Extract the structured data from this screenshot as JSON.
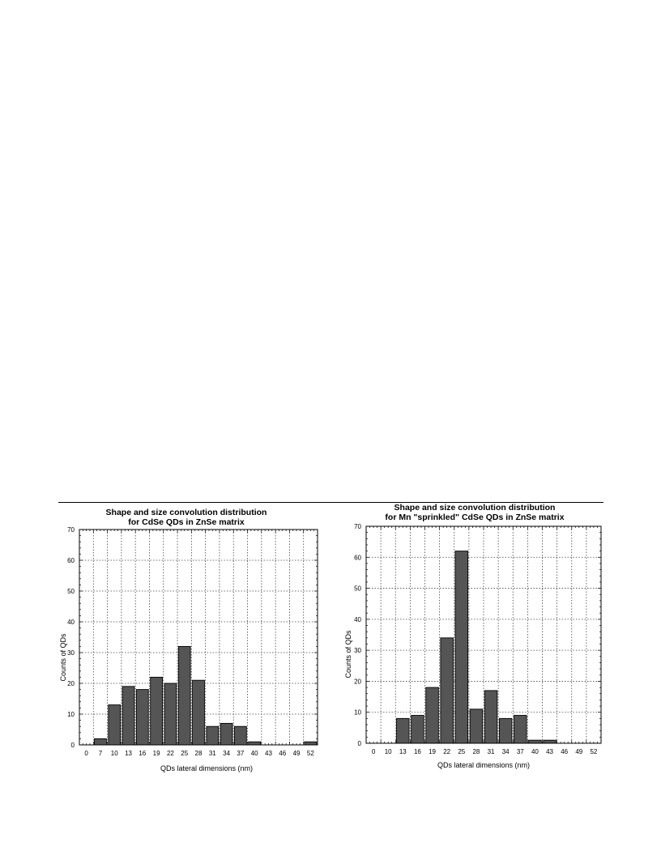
{
  "chart_data": [
    {
      "type": "bar",
      "title_line1": "Shape and size convolution distribution",
      "title_line2": "for CdSe QDs in ZnSe matrix",
      "xlabel": "QDs  lateral dimensions (nm)",
      "ylabel": "Counts of QDs",
      "ylim": [
        0,
        70
      ],
      "yticks": [
        0,
        10,
        20,
        30,
        40,
        50,
        60,
        70
      ],
      "categories": [
        "0",
        "7",
        "10",
        "13",
        "16",
        "19",
        "22",
        "25",
        "28",
        "31",
        "34",
        "37",
        "40",
        "43",
        "46",
        "49",
        "52"
      ],
      "values": [
        0,
        2,
        13,
        19,
        18,
        22,
        20,
        32,
        21,
        6,
        7,
        6,
        1,
        0,
        0,
        0,
        1
      ],
      "grid": true,
      "bar_color": "#555555"
    },
    {
      "type": "bar",
      "title_line1": "Shape and size convolution distribution",
      "title_line2": "for Mn \"sprinkled\" CdSe QDs in ZnSe matrix",
      "xlabel": "QDs lateral dimensions (nm)",
      "ylabel": "Counts of QDs",
      "ylim": [
        0,
        70
      ],
      "yticks": [
        0,
        10,
        20,
        30,
        40,
        50,
        60,
        70
      ],
      "categories": [
        "0",
        "10",
        "13",
        "16",
        "19",
        "22",
        "25",
        "28",
        "31",
        "34",
        "37",
        "40",
        "43",
        "46",
        "49",
        "52"
      ],
      "values": [
        0,
        0,
        8,
        9,
        18,
        34,
        62,
        11,
        17,
        8,
        9,
        1,
        1,
        0,
        0,
        0
      ],
      "grid": true,
      "bar_color": "#555555"
    }
  ]
}
